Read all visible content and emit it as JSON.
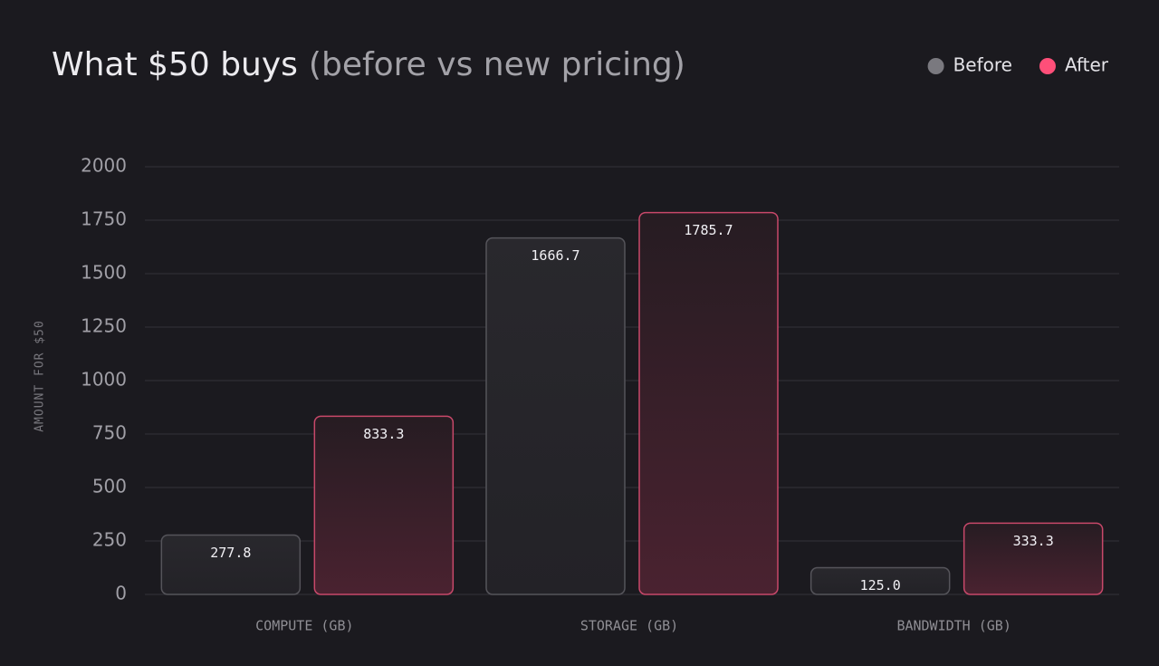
{
  "chart_data": {
    "type": "bar",
    "title": "What $50 buys",
    "subtitle": "(before vs new pricing)",
    "y_label": "AMOUNT FOR $50",
    "categories": [
      "COMPUTE (GB)",
      "STORAGE (GB)",
      "BANDWIDTH (GB)"
    ],
    "series": [
      {
        "name": "Before",
        "color": "#7a797f",
        "values": [
          277.8,
          1666.7,
          125.0
        ],
        "value_labels": [
          "277.8",
          "1666.7",
          "125.0"
        ]
      },
      {
        "name": "After",
        "color": "#ff4f79",
        "values": [
          833.3,
          1785.7,
          333.3
        ],
        "value_labels": [
          "833.3",
          "1785.7",
          "333.3"
        ]
      }
    ],
    "ylim": [
      0,
      2000
    ],
    "yticks": [
      0,
      250,
      500,
      750,
      1000,
      1250,
      1500,
      1750,
      2000
    ],
    "grid": true,
    "legend": "top-right"
  }
}
